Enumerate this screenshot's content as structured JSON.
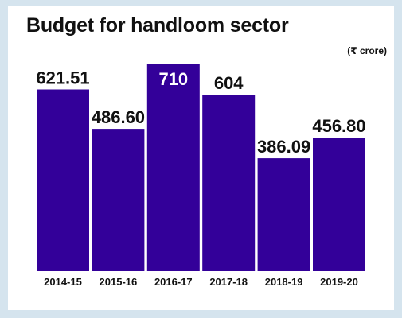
{
  "chart_data": {
    "type": "bar",
    "title": "Budget for handloom sector",
    "unit_label": "(₹ crore)",
    "categories": [
      "2014-15",
      "2015-16",
      "2016-17",
      "2017-18",
      "2018-19",
      "2019-20"
    ],
    "values": [
      621.51,
      486.6,
      710,
      604,
      386.09,
      456.8
    ],
    "value_labels": [
      "621.51",
      "486.60",
      "710",
      "604",
      "386.09",
      "456.80"
    ],
    "ylim": [
      0,
      710
    ],
    "grid": false,
    "legend": "none",
    "colors": {
      "bar": "#330099",
      "label": "#111111",
      "label_inside": "#ffffff"
    }
  }
}
